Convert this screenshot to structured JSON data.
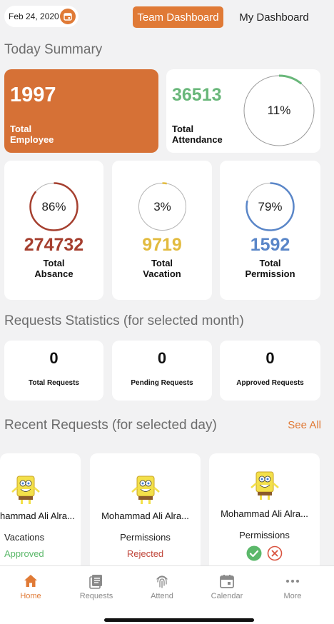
{
  "header": {
    "date": "Feb 24, 2020",
    "tabs": [
      {
        "label": "Team Dashboard",
        "active": true
      },
      {
        "label": "My Dashboard",
        "active": false
      }
    ]
  },
  "today_summary": {
    "title": "Today Summary",
    "total_employee": {
      "value": "1997",
      "label_line1": "Total",
      "label_line2": "Employee"
    },
    "total_attendance": {
      "value": "36513",
      "label_line1": "Total",
      "label_line2": "Attendance",
      "percent": "11%",
      "fraction": 0.11
    },
    "stats": [
      {
        "percent": "86%",
        "fraction": 0.86,
        "value": "274732",
        "label_line1": "Total",
        "label_line2": "Absance",
        "color": "#a53f2f"
      },
      {
        "percent": "3%",
        "fraction": 0.03,
        "value": "9719",
        "label_line1": "Total",
        "label_line2": "Vacation",
        "color": "#e2bb3f"
      },
      {
        "percent": "79%",
        "fraction": 0.79,
        "value": "1592",
        "label_line1": "Total",
        "label_line2": "Permission",
        "color": "#5a86c8"
      }
    ]
  },
  "requests_statistics": {
    "title": "Requests Statistics (for selected month)",
    "items": [
      {
        "value": "0",
        "label": "Total Requests"
      },
      {
        "value": "0",
        "label": "Pending Requests"
      },
      {
        "value": "0",
        "label": "Approved Requests"
      }
    ]
  },
  "recent_requests": {
    "title": "Recent Requests (for selected day)",
    "see_all": "See All",
    "cards": [
      {
        "name": "hammad Ali Alra...",
        "type": "Vacations",
        "status": "Approved",
        "status_color": "#5bb86a"
      },
      {
        "name": "Mohammad Ali Alra...",
        "type": "Permissions",
        "status": "Rejected",
        "status_color": "#c0463a"
      },
      {
        "name": "Mohammad Ali Alra...",
        "type": "Permissions",
        "status": "",
        "status_color": ""
      }
    ]
  },
  "bottom_nav": [
    {
      "label": "Home",
      "icon": "home-icon",
      "active": true
    },
    {
      "label": "Requests",
      "icon": "requests-icon",
      "active": false
    },
    {
      "label": "Attend",
      "icon": "fingerprint-icon",
      "active": false
    },
    {
      "label": "Calendar",
      "icon": "calendar-icon",
      "active": false
    },
    {
      "label": "More",
      "icon": "more-icon",
      "active": false
    }
  ],
  "colors": {
    "accent": "#e07a36",
    "orange_card": "#d67136",
    "attendance_green": "#69b77a"
  }
}
